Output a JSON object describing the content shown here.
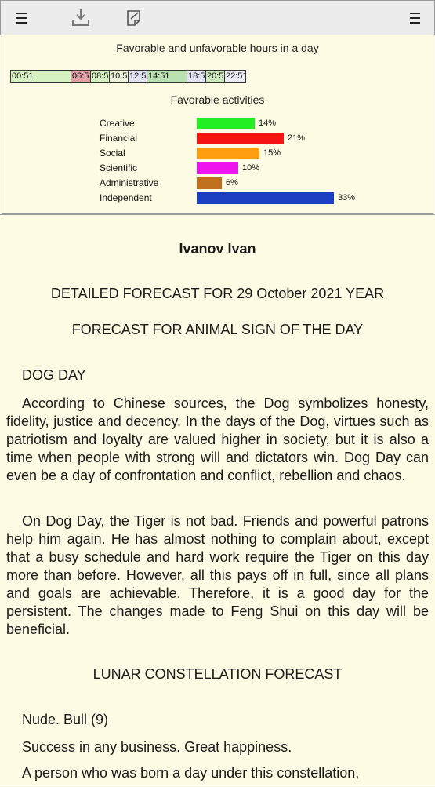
{
  "toolbar": {
    "left_menu_icon": "hamburger-menu-icon",
    "download_icon": "download-icon",
    "edit_icon": "edit-note-icon",
    "right_menu_icon": "hamburger-menu-icon"
  },
  "hours": {
    "title": "Favorable and unfavorable hours in a day",
    "segments": [
      {
        "label": "00:51",
        "color": "#d6f2c2"
      },
      {
        "label": "06:5",
        "color": "#e2a0a6"
      },
      {
        "label": "08:5",
        "color": "#d6f2c2"
      },
      {
        "label": "10:5",
        "color": "#eef5dc"
      },
      {
        "label": "12:5",
        "color": "#e3e3f3"
      },
      {
        "label": "14:51",
        "color": "#b9e1b2"
      },
      {
        "label": "18:5",
        "color": "#e3e3f3"
      },
      {
        "label": "20:5",
        "color": "#cbe9bc"
      },
      {
        "label": "22:51",
        "color": "#ededf7"
      }
    ]
  },
  "activities": {
    "title": "Favorable activities",
    "items": [
      {
        "label": "Creative",
        "percent_label": "14%",
        "value": 14,
        "color": "#22ee22"
      },
      {
        "label": "Financial",
        "percent_label": "21%",
        "value": 21,
        "color": "#f51414"
      },
      {
        "label": "Social",
        "percent_label": "15%",
        "value": 15,
        "color": "#ff9d10"
      },
      {
        "label": "Scientific",
        "percent_label": "10%",
        "value": 10,
        "color": "#ee14ee"
      },
      {
        "label": "Administrative",
        "percent_label": "6%",
        "value": 6,
        "color": "#c0701c"
      },
      {
        "label": "Independent",
        "percent_label": "33%",
        "value": 33,
        "color": "#1c3ec0"
      }
    ]
  },
  "content": {
    "name": "Ivanov Ivan",
    "forecast_title": "DETAILED FORECAST FOR 29 October 2021 YEAR",
    "animal_title": "FORECAST FOR ANIMAL SIGN OF THE DAY",
    "day_title": "DOG DAY",
    "para1": "According to Chinese sources, the Dog symbolizes honesty, fidelity, justice and decency. In the days of the Dog, virtues such as patriotism and loyalty are valued higher in society, but it is also a time when people with strong will and dictators win. Dog Day can even be a day of confrontation and conflict, rebellion and chaos.",
    "para2": "On Dog Day, the Tiger is not bad. Friends and powerful patrons help him again. He has almost nothing to complain about, except that a busy schedule and hard work require the Tiger on this day more than before. However, all this pays off in full, since all plans and goals are achievable. Therefore, it is a good day for the persistent. The changes made to Feng Shui on this day will be beneficial.",
    "lunar_title": "LUNAR CONSTELLATION FORECAST",
    "constellation": "Nude. Bull (9)",
    "success": "Success in any business. Great happiness.",
    "para3": "A person who was born a day under this constellation,"
  }
}
